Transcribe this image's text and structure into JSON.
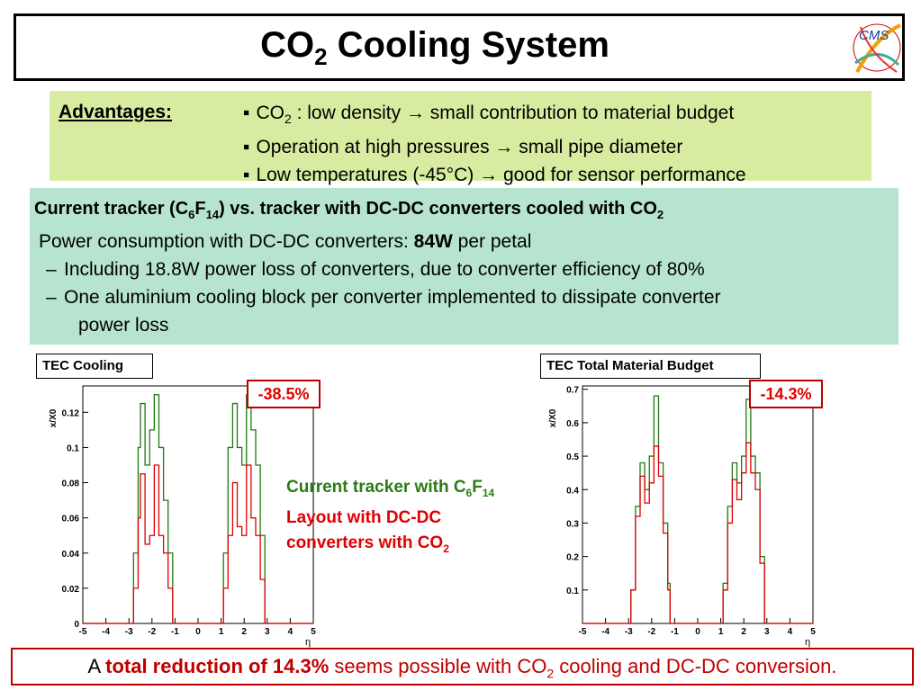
{
  "title": {
    "main": "CO",
    "sub": "2",
    "rest": " Cooling System"
  },
  "advantages": {
    "label": "Advantages:",
    "items": [
      {
        "pre": "CO",
        "sub": "2",
        "post": " : low density → small contribution to material budget"
      },
      {
        "pre": "Operation at high pressures → small pipe diameter",
        "sub": "",
        "post": ""
      },
      {
        "pre": "Low temperatures (-45°C) → good for sensor performance",
        "sub": "",
        "post": ""
      }
    ]
  },
  "comparison": {
    "heading": {
      "a": "Current tracker (C",
      "b": "6",
      "c": "F",
      "d": "14",
      "e": ") vs. tracker with DC-DC converters cooled with CO",
      "f": "2"
    },
    "power_pre": "Power consumption with DC-DC converters: ",
    "power_value": "84W",
    "power_post": " per petal",
    "bullet1": "Including 18.8W power loss of converters, due to converter efficiency of  80%",
    "bullet2_line1": "One aluminium cooling block per converter implemented to dissipate converter",
    "bullet2_line2": "power loss"
  },
  "legend": {
    "green_pre": "Current tracker with C",
    "green_sub1": "6",
    "green_mid": "F",
    "green_sub2": "14",
    "red_line1": "Layout with DC-DC",
    "red_line2_pre": "converters with CO",
    "red_line2_sub": "2"
  },
  "bottom": {
    "a": "A ",
    "highlight": "total reduction of 14.3%",
    "b": " seems possible with CO",
    "sub": "2",
    "c": " cooling and DC-DC conversion."
  },
  "colors": {
    "current": "#1e7a10",
    "dcdc": "#e00000"
  },
  "chart_data": [
    {
      "type": "line",
      "title": "TEC Cooling",
      "reduction_label": "-38.5%",
      "ylabel": "x/X0",
      "xlabel": "η",
      "xlim": [
        -5,
        5
      ],
      "ylim": [
        0,
        0.135
      ],
      "x_ticks": [
        "-5",
        "-4",
        "-3",
        "-2",
        "-1",
        "0",
        "1",
        "2",
        "3",
        "4",
        "5"
      ],
      "y_ticks": [
        {
          "v": 0,
          "label": "0"
        },
        {
          "v": 0.02,
          "label": "0.02"
        },
        {
          "v": 0.04,
          "label": "0.04"
        },
        {
          "v": 0.06,
          "label": "0.06"
        },
        {
          "v": 0.08,
          "label": "0.08"
        },
        {
          "v": 0.1,
          "label": "0.1"
        },
        {
          "v": 0.12,
          "label": "0.12"
        }
      ],
      "series": [
        {
          "color": "#1e7a10",
          "points": [
            [
              -5,
              0
            ],
            [
              -3.0,
              0
            ],
            [
              -2.8,
              0.04
            ],
            [
              -2.6,
              0.1
            ],
            [
              -2.5,
              0.125
            ],
            [
              -2.3,
              0.09
            ],
            [
              -2.1,
              0.11
            ],
            [
              -1.9,
              0.13
            ],
            [
              -1.7,
              0.1
            ],
            [
              -1.5,
              0.07
            ],
            [
              -1.3,
              0.04
            ],
            [
              -1.1,
              0.0
            ],
            [
              0.9,
              0
            ],
            [
              1.1,
              0.04
            ],
            [
              1.3,
              0.1
            ],
            [
              1.5,
              0.125
            ],
            [
              1.7,
              0.1
            ],
            [
              1.9,
              0.09
            ],
            [
              2.1,
              0.13
            ],
            [
              2.3,
              0.11
            ],
            [
              2.5,
              0.09
            ],
            [
              2.7,
              0.05
            ],
            [
              2.9,
              0.0
            ],
            [
              5,
              0
            ]
          ]
        },
        {
          "color": "#e00000",
          "points": [
            [
              -5,
              0
            ],
            [
              -3.0,
              0
            ],
            [
              -2.8,
              0.02
            ],
            [
              -2.6,
              0.06
            ],
            [
              -2.5,
              0.085
            ],
            [
              -2.3,
              0.045
            ],
            [
              -2.1,
              0.05
            ],
            [
              -1.9,
              0.09
            ],
            [
              -1.7,
              0.05
            ],
            [
              -1.5,
              0.04
            ],
            [
              -1.3,
              0.02
            ],
            [
              -1.1,
              0.0
            ],
            [
              0.9,
              0
            ],
            [
              1.1,
              0.02
            ],
            [
              1.3,
              0.05
            ],
            [
              1.5,
              0.08
            ],
            [
              1.7,
              0.055
            ],
            [
              1.9,
              0.05
            ],
            [
              2.1,
              0.09
            ],
            [
              2.3,
              0.06
            ],
            [
              2.5,
              0.05
            ],
            [
              2.7,
              0.025
            ],
            [
              2.9,
              0.0
            ],
            [
              5,
              0
            ]
          ]
        }
      ]
    },
    {
      "type": "line",
      "title": "TEC Total Material Budget",
      "reduction_label": "-14.3%",
      "ylabel": "x/X0",
      "xlabel": "η",
      "xlim": [
        -5,
        5
      ],
      "ylim": [
        0,
        0.71
      ],
      "x_ticks": [
        "-5",
        "-4",
        "-3",
        "-2",
        "-1",
        "0",
        "1",
        "2",
        "3",
        "4",
        "5"
      ],
      "y_ticks": [
        {
          "v": 0.1,
          "label": "0.1"
        },
        {
          "v": 0.2,
          "label": "0.2"
        },
        {
          "v": 0.3,
          "label": "0.3"
        },
        {
          "v": 0.4,
          "label": "0.4"
        },
        {
          "v": 0.5,
          "label": "0.5"
        },
        {
          "v": 0.6,
          "label": "0.6"
        },
        {
          "v": 0.7,
          "label": "0.7"
        }
      ],
      "series": [
        {
          "color": "#1e7a10",
          "points": [
            [
              -5,
              0
            ],
            [
              -3.0,
              0
            ],
            [
              -2.9,
              0.1
            ],
            [
              -2.7,
              0.35
            ],
            [
              -2.5,
              0.48
            ],
            [
              -2.3,
              0.4
            ],
            [
              -2.1,
              0.5
            ],
            [
              -1.9,
              0.68
            ],
            [
              -1.7,
              0.48
            ],
            [
              -1.5,
              0.3
            ],
            [
              -1.3,
              0.12
            ],
            [
              -1.2,
              0.0
            ],
            [
              1.0,
              0
            ],
            [
              1.1,
              0.12
            ],
            [
              1.3,
              0.35
            ],
            [
              1.5,
              0.48
            ],
            [
              1.7,
              0.42
            ],
            [
              1.9,
              0.5
            ],
            [
              2.1,
              0.67
            ],
            [
              2.3,
              0.5
            ],
            [
              2.5,
              0.45
            ],
            [
              2.7,
              0.2
            ],
            [
              2.9,
              0.0
            ],
            [
              5,
              0
            ]
          ]
        },
        {
          "color": "#e00000",
          "points": [
            [
              -5,
              0
            ],
            [
              -3.0,
              0
            ],
            [
              -2.9,
              0.1
            ],
            [
              -2.7,
              0.32
            ],
            [
              -2.5,
              0.44
            ],
            [
              -2.3,
              0.36
            ],
            [
              -2.1,
              0.42
            ],
            [
              -1.9,
              0.53
            ],
            [
              -1.7,
              0.44
            ],
            [
              -1.5,
              0.27
            ],
            [
              -1.3,
              0.1
            ],
            [
              -1.2,
              0.0
            ],
            [
              1.0,
              0
            ],
            [
              1.1,
              0.1
            ],
            [
              1.3,
              0.3
            ],
            [
              1.5,
              0.43
            ],
            [
              1.7,
              0.37
            ],
            [
              1.9,
              0.45
            ],
            [
              2.1,
              0.54
            ],
            [
              2.3,
              0.45
            ],
            [
              2.5,
              0.4
            ],
            [
              2.7,
              0.18
            ],
            [
              2.9,
              0.0
            ],
            [
              5,
              0
            ]
          ]
        }
      ]
    }
  ]
}
